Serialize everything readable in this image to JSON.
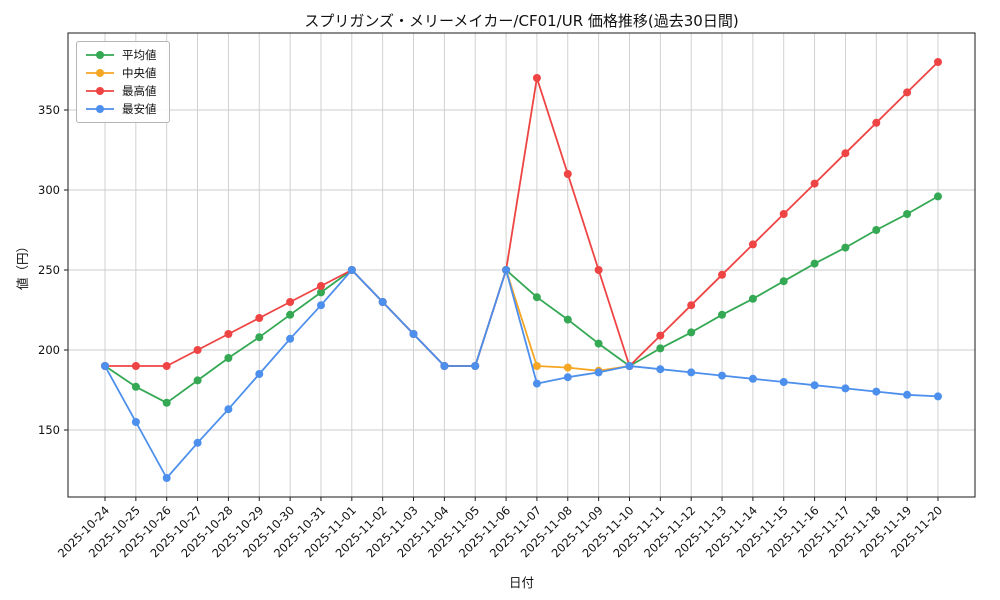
{
  "chart_data": {
    "type": "line",
    "title": "スプリガンズ・メリーメイカー/CF01/UR 価格推移(過去30日間)",
    "xlabel": "日付",
    "ylabel": "値（円）",
    "grid": true,
    "legend_position": "upper-left",
    "ylim": [
      108,
      398
    ],
    "yticks": [
      150,
      200,
      250,
      300,
      350
    ],
    "categories": [
      "2025-10-24",
      "2025-10-25",
      "2025-10-26",
      "2025-10-27",
      "2025-10-28",
      "2025-10-29",
      "2025-10-30",
      "2025-10-31",
      "2025-11-01",
      "2025-11-02",
      "2025-11-03",
      "2025-11-04",
      "2025-11-05",
      "2025-11-06",
      "2025-11-07",
      "2025-11-08",
      "2025-11-09",
      "2025-11-10",
      "2025-11-11",
      "2025-11-12",
      "2025-11-13",
      "2025-11-14",
      "2025-11-15",
      "2025-11-16",
      "2025-11-17",
      "2025-11-18",
      "2025-11-19",
      "2025-11-20"
    ],
    "series": [
      {
        "id": "avg",
        "name": "平均値",
        "color": "#34a853",
        "values": [
          190,
          177,
          167,
          181,
          195,
          208,
          222,
          236,
          250,
          230,
          210,
          190,
          190,
          250,
          233,
          219,
          204,
          190,
          201,
          211,
          222,
          232,
          243,
          254,
          264,
          275,
          285,
          296
        ]
      },
      {
        "id": "median",
        "name": "中央値",
        "color": "#f5a623",
        "values": [
          null,
          null,
          null,
          null,
          null,
          null,
          null,
          null,
          null,
          null,
          null,
          null,
          null,
          250,
          190,
          189,
          187,
          190,
          null,
          null,
          null,
          null,
          null,
          null,
          null,
          null,
          null,
          null
        ]
      },
      {
        "id": "max",
        "name": "最高値",
        "color": "#ef4444",
        "values": [
          190,
          190,
          190,
          200,
          210,
          220,
          230,
          240,
          250,
          230,
          210,
          190,
          190,
          250,
          370,
          310,
          250,
          190,
          209,
          228,
          247,
          266,
          285,
          304,
          323,
          342,
          361,
          380
        ]
      },
      {
        "id": "min",
        "name": "最安値",
        "color": "#4d8fec",
        "values": [
          190,
          155,
          120,
          142,
          163,
          185,
          207,
          228,
          250,
          230,
          210,
          190,
          190,
          250,
          179,
          183,
          186,
          190,
          188,
          186,
          184,
          182,
          180,
          178,
          176,
          174,
          172,
          171
        ]
      }
    ]
  }
}
